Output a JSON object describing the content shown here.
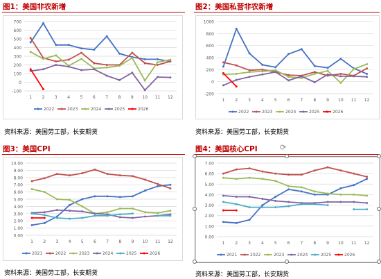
{
  "panels": [
    {
      "title": "图1：美国非农新增",
      "source": "资料来源：美国劳工部，长安期货",
      "chart_data": {
        "type": "line",
        "x": [
          1,
          2,
          3,
          4,
          5,
          6,
          7,
          8,
          9,
          10,
          11,
          12
        ],
        "ylim": [
          -100,
          700
        ],
        "yticks": [
          -100,
          0,
          100,
          200,
          300,
          400,
          500,
          600,
          700
        ],
        "legend": "bottom",
        "grid": true,
        "series": [
          {
            "name": "2022",
            "color": "#4472c4",
            "values": [
              460,
              680,
              430,
              430,
              390,
              375,
              530,
              330,
              290,
              265,
              265,
              240
            ]
          },
          {
            "name": "2023",
            "color": "#c0504d",
            "values": [
              510,
              280,
              240,
              260,
              340,
              220,
              200,
              200,
              340,
              220,
              200,
              240
            ]
          },
          {
            "name": "2024",
            "color": "#9bbb59",
            "values": [
              350,
              270,
              310,
              190,
              270,
              160,
              170,
              190,
              280,
              20,
              230,
              260
            ]
          },
          {
            "name": "2025",
            "color": "#8064a2",
            "values": [
              130,
              150,
              200,
              180,
              140,
              150,
              75,
              25,
              110,
              -90,
              60,
              55
            ]
          },
          {
            "name": "2026",
            "color": "#ff0000",
            "values": [
              150,
              -80,
              null,
              null,
              null,
              null,
              null,
              null,
              null,
              null,
              null,
              null
            ]
          }
        ]
      }
    },
    {
      "title": "图2：美国私营非农新增",
      "source": "资料来源：美国劳工部，长安期货",
      "chart_data": {
        "type": "line",
        "x": [
          1,
          2,
          3,
          4,
          5,
          6,
          7,
          8,
          9,
          10,
          11,
          12
        ],
        "ylim": [
          -200,
          1000
        ],
        "yticks": [
          -200,
          0,
          200,
          400,
          600,
          800,
          1000
        ],
        "legend": "bottom",
        "grid": true,
        "series": [
          {
            "name": "2022",
            "color": "#4472c4",
            "values": [
              250,
              880,
              470,
              280,
              240,
              460,
              540,
              260,
              230,
              380,
              220,
              130
            ]
          },
          {
            "name": "2023",
            "color": "#c0504d",
            "values": [
              320,
              270,
              190,
              200,
              160,
              110,
              100,
              160,
              100,
              130,
              100,
              220
            ]
          },
          {
            "name": "2024",
            "color": "#9bbb59",
            "values": [
              120,
              130,
              160,
              170,
              190,
              80,
              60,
              130,
              180,
              -20,
              210,
              290
            ]
          },
          {
            "name": "2025",
            "color": "#8064a2",
            "values": [
              -60,
              30,
              80,
              120,
              160,
              20,
              90,
              -10,
              120,
              90,
              90,
              80
            ]
          },
          {
            "name": "2026",
            "color": "#ff0000",
            "values": [
              140,
              -80,
              null,
              null,
              null,
              null,
              null,
              null,
              null,
              null,
              null,
              null
            ]
          }
        ]
      }
    },
    {
      "title": "图3：美国CPI",
      "source": "资料来源：美国劳工部，长安期货",
      "chart_data": {
        "type": "line",
        "x": [
          1,
          2,
          3,
          4,
          5,
          6,
          7,
          8,
          9,
          10,
          11,
          12
        ],
        "ylim": [
          0,
          10
        ],
        "yticks": [
          0,
          1,
          2,
          3,
          4,
          5,
          6,
          7,
          8,
          9,
          10
        ],
        "yformat": 2,
        "legend": "bottom",
        "grid": true,
        "series": [
          {
            "name": "2021",
            "color": "#4472c4",
            "values": [
              1.4,
              1.7,
              2.6,
              4.2,
              5.0,
              5.4,
              5.4,
              5.3,
              5.4,
              6.2,
              6.8,
              7.0
            ]
          },
          {
            "name": "2022",
            "color": "#c0504d",
            "values": [
              7.5,
              7.9,
              8.5,
              8.3,
              8.6,
              9.1,
              8.5,
              8.3,
              8.2,
              7.7,
              7.1,
              6.5
            ]
          },
          {
            "name": "2023",
            "color": "#9bbb59",
            "values": [
              6.4,
              6.0,
              5.0,
              4.9,
              4.0,
              3.0,
              3.2,
              3.7,
              3.7,
              3.2,
              3.1,
              3.4
            ]
          },
          {
            "name": "2024",
            "color": "#8064a2",
            "values": [
              3.1,
              3.2,
              3.5,
              3.4,
              3.3,
              3.0,
              2.9,
              2.5,
              2.4,
              2.6,
              2.7,
              2.9
            ]
          },
          {
            "name": "2025",
            "color": "#4bacc6",
            "values": [
              3.0,
              2.8,
              2.4,
              2.3,
              2.4,
              2.7,
              2.7,
              2.9,
              3.0,
              null,
              2.7,
              2.7
            ]
          },
          {
            "name": "2026",
            "color": "#ff0000",
            "values": [
              2.4,
              2.4,
              null,
              null,
              null,
              null,
              null,
              null,
              null,
              null,
              null,
              null
            ]
          }
        ]
      }
    },
    {
      "title": "图4：美国核心CPI",
      "source": "资料来源：美国劳工部，长安期货",
      "chart_data": {
        "type": "line",
        "x": [
          1,
          2,
          3,
          4,
          5,
          6,
          7,
          8,
          9,
          10,
          11,
          12
        ],
        "ylim": [
          0,
          7
        ],
        "yticks": [
          0,
          1,
          2,
          3,
          4,
          5,
          6,
          7
        ],
        "yformat": 2,
        "legend": "bottom",
        "grid": true,
        "series": [
          {
            "name": "2021",
            "color": "#4472c4",
            "values": [
              1.4,
              1.3,
              1.6,
              3.0,
              3.8,
              4.5,
              4.3,
              4.0,
              4.0,
              4.6,
              4.9,
              5.5
            ]
          },
          {
            "name": "2022",
            "color": "#c0504d",
            "values": [
              6.0,
              6.4,
              6.5,
              6.2,
              6.0,
              5.9,
              5.9,
              6.3,
              6.6,
              6.3,
              6.0,
              5.7
            ]
          },
          {
            "name": "2023",
            "color": "#9bbb59",
            "values": [
              5.6,
              5.5,
              5.6,
              5.5,
              5.3,
              4.8,
              4.7,
              4.3,
              4.1,
              4.0,
              4.0,
              3.9
            ]
          },
          {
            "name": "2024",
            "color": "#8064a2",
            "values": [
              3.9,
              3.8,
              3.8,
              3.6,
              3.4,
              3.3,
              3.2,
              3.2,
              3.3,
              3.3,
              3.3,
              3.2
            ]
          },
          {
            "name": "2025",
            "color": "#4bacc6",
            "values": [
              3.3,
              3.1,
              2.8,
              2.8,
              2.8,
              2.9,
              3.1,
              3.1,
              3.0,
              null,
              2.6,
              2.6
            ]
          },
          {
            "name": "2026",
            "color": "#ff0000",
            "values": [
              2.5,
              2.5,
              null,
              null,
              null,
              null,
              null,
              null,
              null,
              null,
              null,
              null
            ]
          }
        ]
      }
    }
  ]
}
